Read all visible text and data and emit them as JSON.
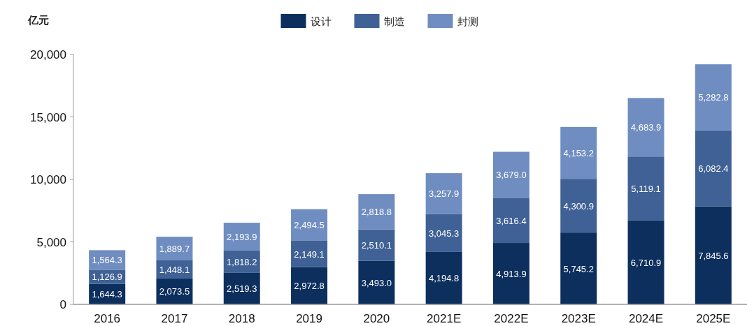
{
  "chart_data": {
    "type": "bar",
    "stacked": true,
    "ylabel": "亿元",
    "legend": "top",
    "grid": false,
    "categories": [
      "2016",
      "2017",
      "2018",
      "2019",
      "2020",
      "2021E",
      "2022E",
      "2023E",
      "2024E",
      "2025E"
    ],
    "ylim": [
      0,
      20000
    ],
    "yticks": [
      {
        "value": 0,
        "label": "0"
      },
      {
        "value": 5000,
        "label": "5,000"
      },
      {
        "value": 10000,
        "label": "10,000"
      },
      {
        "value": 15000,
        "label": "15,000"
      },
      {
        "value": 20000,
        "label": "20,000"
      }
    ],
    "series": [
      {
        "name": "设计",
        "color": "#0d2f5e",
        "values": [
          1644.3,
          2073.5,
          2519.3,
          2972.8,
          3493.0,
          4194.8,
          4913.9,
          5745.2,
          6710.9,
          7845.6
        ],
        "value_labels": [
          "1,644.3",
          "2,073.5",
          "2,519.3",
          "2,972.8",
          "3,493.0",
          "4,194.8",
          "4,913.9",
          "5,745.2",
          "6,710.9",
          "7,845.6"
        ]
      },
      {
        "name": "制造",
        "color": "#3f6195",
        "values": [
          1126.9,
          1448.1,
          1818.2,
          2149.1,
          2510.1,
          3045.3,
          3616.4,
          4300.9,
          5119.1,
          6082.4
        ],
        "value_labels": [
          "1,126.9",
          "1,448.1",
          "1,818.2",
          "2,149.1",
          "2,510.1",
          "3,045.3",
          "3,616.4",
          "4,300.9",
          "5,119.1",
          "6,082.4"
        ]
      },
      {
        "name": "封测",
        "color": "#6f8dc1",
        "values": [
          1564.3,
          1889.7,
          2193.9,
          2494.5,
          2818.8,
          3257.9,
          3679.0,
          4153.2,
          4683.9,
          5282.8
        ],
        "value_labels": [
          "1,564.3",
          "1,889.7",
          "2,193.9",
          "2,494.5",
          "2,818.8",
          "3,257.9",
          "3,679.0",
          "4,153.2",
          "4,683.9",
          "5,282.8"
        ]
      }
    ]
  }
}
